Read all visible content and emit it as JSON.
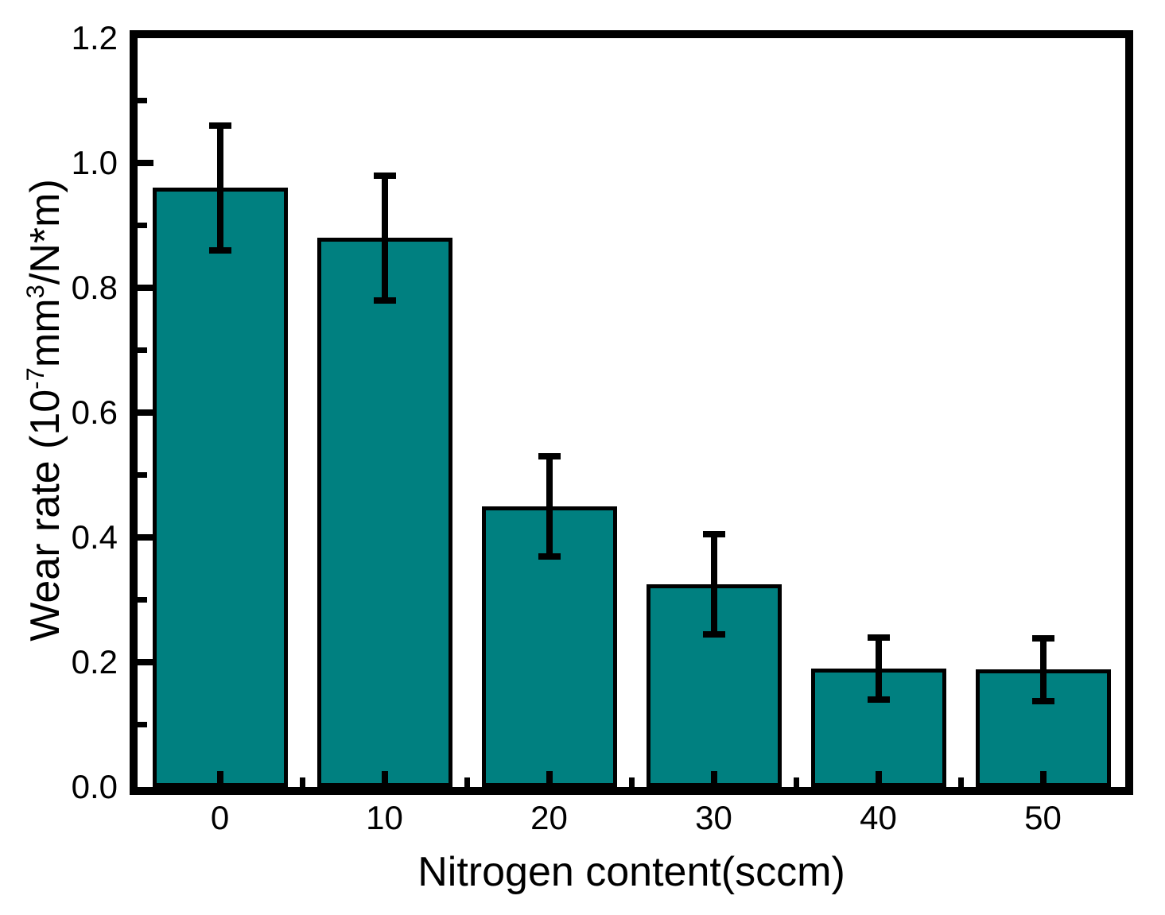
{
  "chart_data": {
    "type": "bar",
    "title": "",
    "xlabel": "Nitrogen content(sccm)",
    "ylabel": "Wear rate (10^-7 mm^3/N*m)",
    "ylabel_parts": [
      {
        "text": "Wear rate (10"
      },
      {
        "text": "-7",
        "sup": true
      },
      {
        "text": "mm"
      },
      {
        "text": "3",
        "sup": true
      },
      {
        "text": "/N*m)"
      }
    ],
    "categories": [
      "0",
      "10",
      "20",
      "30",
      "40",
      "50"
    ],
    "values": [
      0.96,
      0.88,
      0.45,
      0.325,
      0.19,
      0.188
    ],
    "errors": [
      0.1,
      0.1,
      0.08,
      0.08,
      0.05,
      0.05
    ],
    "ylim": [
      0,
      1.2
    ],
    "y_major_step": 0.2,
    "y_minor_step": 0.1,
    "y_tick_labels": [
      "0.0",
      "0.2",
      "0.4",
      "0.6",
      "0.8",
      "1.0",
      "1.2"
    ],
    "bar_color": "#008080",
    "bar_border_color": "#000000",
    "axis_color": "#000000",
    "background_color": "#ffffff",
    "grid": false,
    "legend": null,
    "ticks_direction": "in"
  }
}
